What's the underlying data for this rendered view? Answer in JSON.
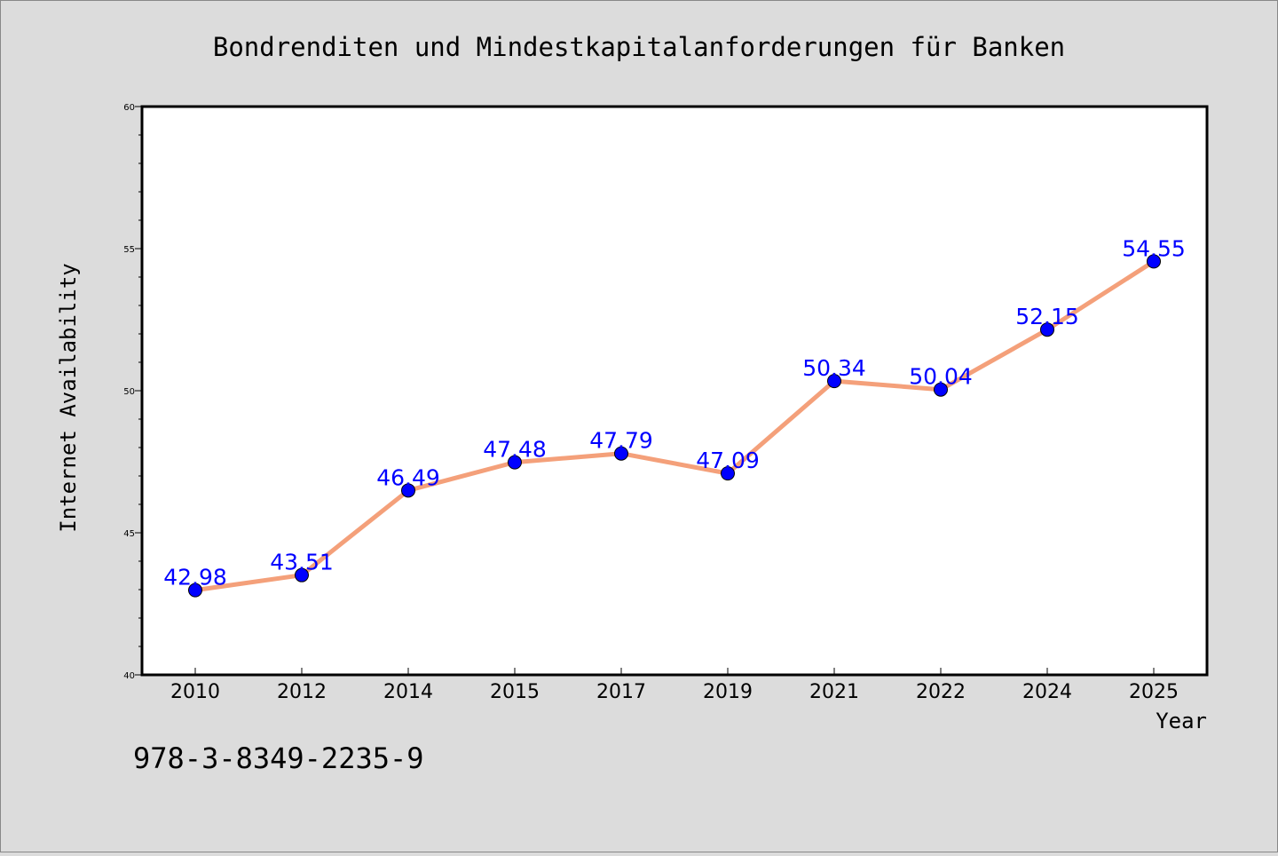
{
  "chart_data": {
    "type": "line",
    "title": "Bondrenditen und Mindestkapitalanforderungen für Banken",
    "xlabel": "Year",
    "ylabel": "Internet Availability",
    "categories": [
      "2010",
      "2012",
      "2014",
      "2015",
      "2017",
      "2019",
      "2021",
      "2022",
      "2024",
      "2025"
    ],
    "series": [
      {
        "values": [
          42.98,
          43.51,
          46.49,
          47.48,
          47.79,
          47.09,
          50.34,
          50.04,
          52.15,
          54.55
        ],
        "data_labels": [
          "42.98",
          "43.51",
          "46.49",
          "47.48",
          "47.79",
          "47.09",
          "50.34",
          "50.04",
          "52.15",
          "54.55"
        ]
      }
    ],
    "ylim": [
      40,
      60
    ],
    "y_ticks": [
      "40",
      "45",
      "50",
      "55",
      "60"
    ],
    "grid": false,
    "legend": "none",
    "annotation": "978-3-8349-2235-9",
    "colors": {
      "background": "#dcdcdc",
      "plot_background": "#ffffff",
      "line": "#f4a07a",
      "marker": "#0000ff",
      "data_label": "#0000ff",
      "axis": "#000000"
    }
  }
}
